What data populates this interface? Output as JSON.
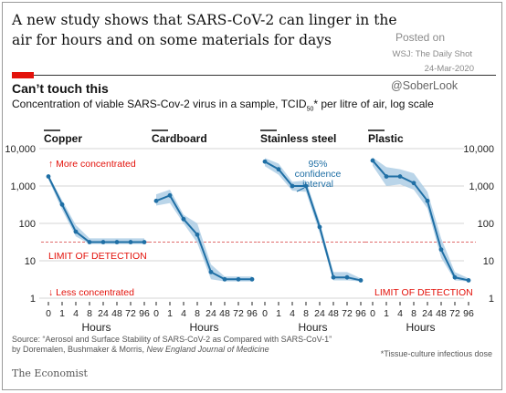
{
  "headline": "A new study shows that SARS-CoV-2 can linger in the air for hours and on some materials for days",
  "overlay": {
    "posted": "Posted on",
    "source": "WSJ: The Daily Shot",
    "date": "24-Mar-2020",
    "handle": "@SoberLook"
  },
  "colors": {
    "line": "#1f6fa5",
    "band": "#a9cbe3",
    "red": "#e3120b",
    "limit": "#e06a6a",
    "grid": "#d5d5d5",
    "text": "#111111"
  },
  "chart_data": {
    "type": "line",
    "title": "Can’t touch this",
    "subtitle_prefix": "Concentration of viable SARS-Cov-2 virus in a sample, TCID",
    "subtitle_sub": "50",
    "subtitle_suffix": "* per litre of air, log scale",
    "xlabel": "Hours",
    "x_tick_labels": [
      "0",
      "1",
      "4",
      "8",
      "24",
      "48",
      "72",
      "96"
    ],
    "y_tick_labels": [
      "1",
      "10",
      "100",
      "1,000",
      "10,000"
    ],
    "yscale": "log",
    "ylim": [
      1,
      10000
    ],
    "limit_of_detection": 31.6,
    "limit_label": "LIMIT OF DETECTION",
    "more_label": "↑ More concentrated",
    "less_label": "↓ Less concentrated",
    "ci_label_lines": [
      "95%",
      "confidence",
      "interval"
    ],
    "panels": [
      {
        "name": "Copper",
        "points": [
          [
            0,
            1800
          ],
          [
            1,
            320
          ],
          [
            4,
            60
          ],
          [
            8,
            31.6
          ],
          [
            24,
            31.6
          ],
          [
            48,
            31.6
          ],
          [
            72,
            31.6
          ],
          [
            96,
            31.6
          ]
        ],
        "band_upper": [
          2000,
          420,
          90,
          40,
          40,
          40,
          40,
          40
        ],
        "band_lower": [
          1500,
          230,
          45,
          28,
          28,
          28,
          28,
          28
        ]
      },
      {
        "name": "Cardboard",
        "points": [
          [
            0,
            400
          ],
          [
            1,
            560
          ],
          [
            4,
            130
          ],
          [
            8,
            50
          ],
          [
            24,
            5
          ],
          [
            48,
            3.2
          ],
          [
            72,
            3.2
          ],
          [
            96,
            3.2
          ]
        ],
        "band_upper": [
          600,
          800,
          170,
          100,
          8,
          3.8,
          3.8,
          3.8
        ],
        "band_lower": [
          300,
          350,
          100,
          30,
          3.2,
          2.8,
          2.8,
          2.8
        ]
      },
      {
        "name": "Stainless steel",
        "points": [
          [
            0,
            4500
          ],
          [
            1,
            2800
          ],
          [
            4,
            1000
          ],
          [
            8,
            1000
          ],
          [
            24,
            80
          ],
          [
            48,
            3.6
          ],
          [
            72,
            3.6
          ],
          [
            96,
            3
          ]
        ],
        "band_upper": [
          5600,
          4000,
          1300,
          1400,
          110,
          5,
          5,
          3.4
        ],
        "band_lower": [
          3400,
          2000,
          750,
          700,
          55,
          3,
          3,
          2.8
        ]
      },
      {
        "name": "Plastic",
        "points": [
          [
            0,
            4800
          ],
          [
            1,
            1800
          ],
          [
            4,
            1800
          ],
          [
            8,
            1200
          ],
          [
            24,
            400
          ],
          [
            48,
            20
          ],
          [
            72,
            3.6
          ],
          [
            96,
            3
          ]
        ],
        "band_upper": [
          5800,
          3200,
          2800,
          2200,
          700,
          40,
          5,
          3.4
        ],
        "band_lower": [
          3500,
          1000,
          1100,
          800,
          250,
          12,
          3,
          2.8
        ]
      }
    ]
  },
  "source": {
    "prefix": "Source: “Aerosol and Surface Stability of SARS-CoV-2 as Compared with SARS-CoV-1”",
    "authors": "by Doremalen, Bushmaker & Morris, ",
    "journal": "New England Journal of Medicine"
  },
  "footnote": "*Tissue-culture infectious dose",
  "brand": "The Economist"
}
